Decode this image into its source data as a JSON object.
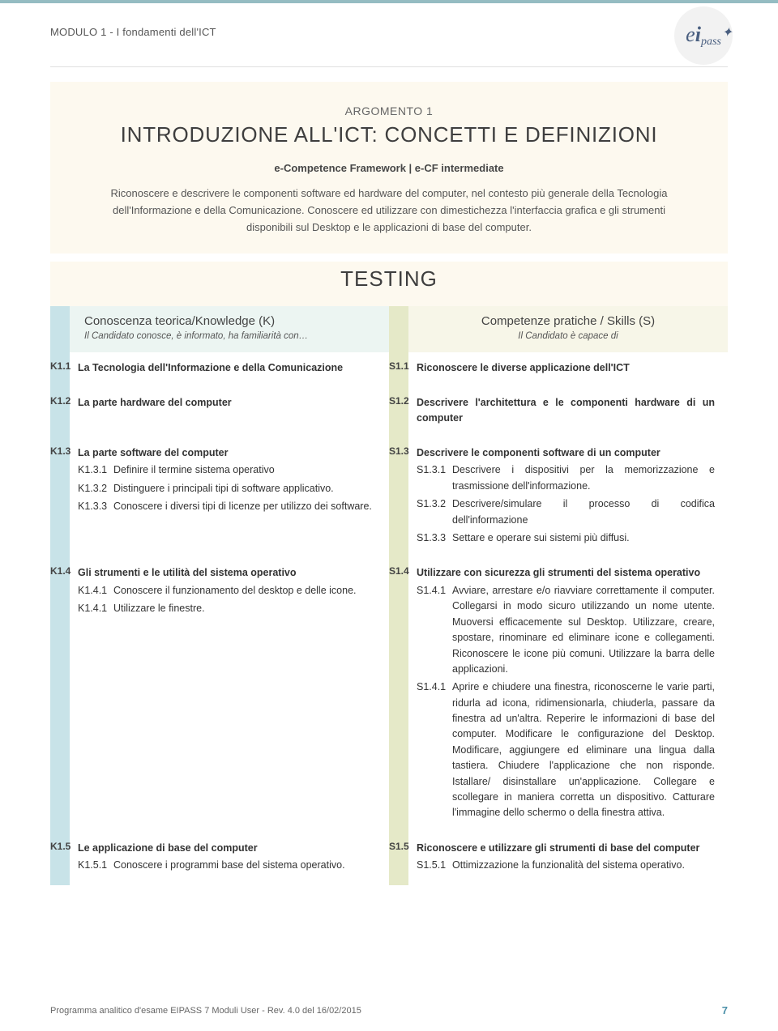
{
  "colors": {
    "topbar": "#95bcc2",
    "intro_bg": "#fdf9ef",
    "k_stripe": "#c8e3e8",
    "k_header_bg": "#ecf5f2",
    "s_stripe": "#e5e9c8",
    "s_header_bg": "#f7f6e8",
    "text": "#373737",
    "page_num": "#4a8fa8"
  },
  "typography": {
    "main_title_size": 26,
    "body_size": 12.5,
    "col_title_size": 15,
    "sub_size": 11.5
  },
  "header": {
    "module": "MODULO 1 - I fondamenti dell'ICT",
    "logo_e": "e",
    "logo_i": "i",
    "logo_pass": "pass"
  },
  "intro": {
    "argomento": "ARGOMENTO 1",
    "title": "INTRODUZIONE ALL'ICT: CONCETTI E DEFINIZIONI",
    "framework": "e-Competence Framework | e-CF intermediate",
    "para": "Riconoscere e descrivere le componenti software ed hardware del computer, nel contesto più generale della Tecnologia dell'Informazione e della Comunicazione. Conoscere ed utilizzare con dimestichezza l'interfaccia grafica e gli strumenti disponibili sul Desktop e le applicazioni di base del computer."
  },
  "testing": "TESTING",
  "cols": {
    "k_title": "Conoscenza teorica/Knowledge (K)",
    "k_sub": "Il Candidato conosce, è informato, ha familiarità con…",
    "s_title": "Competenze pratiche / Skills (S)",
    "s_sub": "Il Candidato è capace di"
  },
  "rows": [
    {
      "k_num": "K1.1",
      "k_title": "La Tecnologia dell'Informazione e della Comunicazione",
      "k_subs": [],
      "s_num": "S1.1",
      "s_title": "Riconoscere le diverse applicazione dell'ICT",
      "s_subs": []
    },
    {
      "k_num": "K1.2",
      "k_title": "La parte hardware del computer",
      "k_subs": [],
      "s_num": "S1.2",
      "s_title": "Descrivere l'architettura e le componenti hardware di un computer",
      "s_subs": []
    },
    {
      "k_num": "K1.3",
      "k_title": "La parte software del computer",
      "k_subs": [
        {
          "n": "K1.3.1",
          "t": "Definire il termine sistema operativo"
        },
        {
          "n": "K1.3.2",
          "t": "Distinguere i principali tipi di software applicativo."
        },
        {
          "n": "K1.3.3",
          "t": "Conoscere i diversi tipi di licenze per utilizzo dei software."
        }
      ],
      "s_num": "S1.3",
      "s_title": "Descrivere le componenti software di un computer",
      "s_subs": [
        {
          "n": "S1.3.1",
          "t": "Descrivere i dispositivi per la memorizzazione e trasmissione dell'informazione."
        },
        {
          "n": "S1.3.2",
          "t": "Descrivere/simulare il processo di codifica dell'informazione"
        },
        {
          "n": "S1.3.3",
          "t": "Settare e operare sui sistemi più diffusi."
        }
      ]
    },
    {
      "k_num": "K1.4",
      "k_title": "Gli strumenti  e le utilità del sistema operativo",
      "k_subs": [
        {
          "n": "K1.4.1",
          "t": "Conoscere il funzionamento del desktop e delle icone."
        },
        {
          "n": "K1.4.1",
          "t": "Utilizzare le finestre."
        }
      ],
      "s_num": "S1.4",
      "s_title": "Utilizzare con sicurezza gli strumenti del sistema operativo",
      "s_subs": [
        {
          "n": "S1.4.1",
          "t": "Avviare, arrestare e/o riavviare correttamente il computer. Collegarsi in modo sicuro utilizzando un nome utente. Muoversi efficacemente sul Desktop. Utilizzare, creare, spostare, rinominare ed eliminare icone e collegamenti. Riconoscere le icone più comuni. Utilizzare la barra delle applicazioni."
        },
        {
          "n": "S1.4.1",
          "t": "Aprire e chiudere una finestra, riconoscerne le varie parti, ridurla ad icona, ridimensionarla, chiuderla, passare da finestra ad un'altra. Reperire le informazioni di base del computer. Modificare le configurazione del Desktop. Modificare, aggiungere ed eliminare una lingua dalla tastiera. Chiudere l'applicazione che non risponde. Istallare/ disinstallare un'applicazione. Collegare e scollegare in maniera corretta un dispositivo. Catturare l'immagine dello schermo o della finestra attiva."
        }
      ]
    },
    {
      "k_num": "K1.5",
      "k_title": "Le applicazione di base del computer",
      "k_subs": [
        {
          "n": "K1.5.1",
          "t": "Conoscere i programmi base del sistema operativo."
        }
      ],
      "s_num": "S1.5",
      "s_title": "Riconoscere e utilizzare gli strumenti di base del computer",
      "s_subs": [
        {
          "n": "S1.5.1",
          "t": "Ottimizzazione la funzionalità del sistema operativo."
        }
      ]
    }
  ],
  "footer": {
    "text": "Programma analitico d'esame EIPASS 7 Moduli User  - Rev. 4.0 del 16/02/2015",
    "page": "7"
  }
}
